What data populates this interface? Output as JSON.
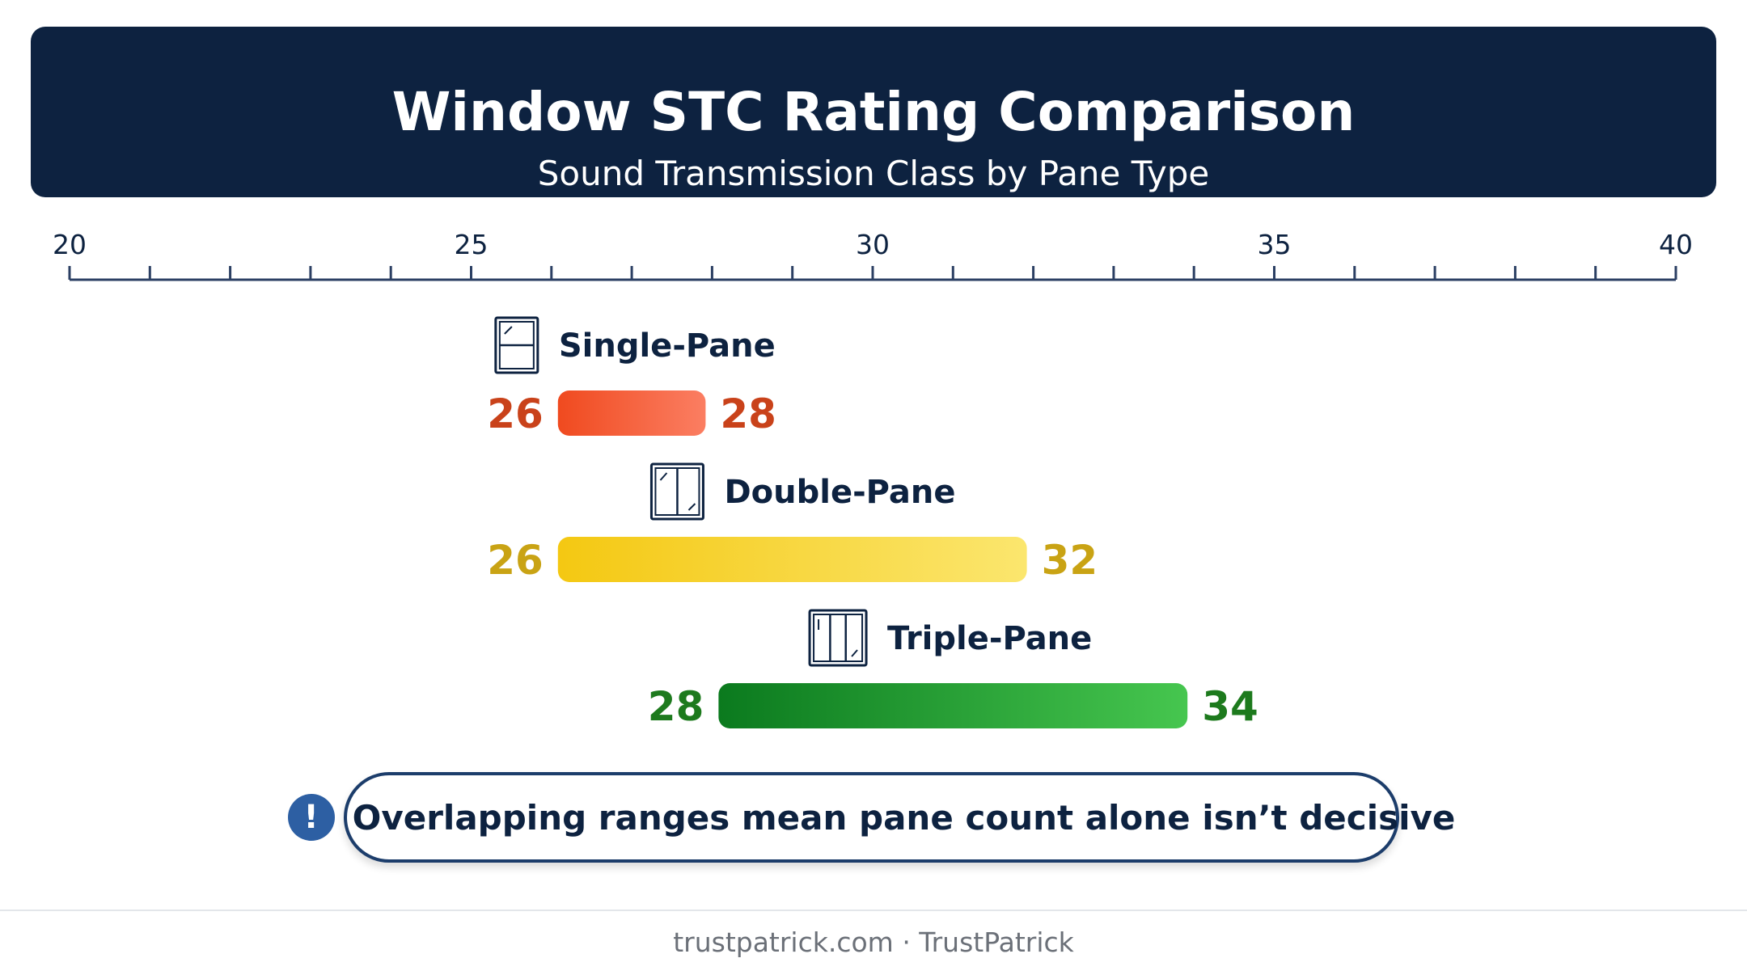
{
  "header": {
    "title": "Window STC Rating Comparison",
    "subtitle": "Sound Transmission Class by Pane Type"
  },
  "chart_data": {
    "type": "bar",
    "orientation": "horizontal-range",
    "title": "Window STC Rating Comparison",
    "subtitle": "Sound Transmission Class by Pane Type",
    "xlim": [
      20,
      40
    ],
    "major_ticks": [
      20,
      25,
      30,
      35,
      40
    ],
    "minor_tick_step": 1,
    "axis_position": "top",
    "grid": false,
    "series": [
      {
        "name": "Single-Pane",
        "low": 26,
        "high": 28,
        "icon": "single-pane-window-icon",
        "color_start": "#f04a1f",
        "color_end": "#fb7e62",
        "label_color": "#c9421a"
      },
      {
        "name": "Double-Pane",
        "low": 26,
        "high": 32,
        "icon": "double-pane-window-icon",
        "color_start": "#f4c812",
        "color_end": "#fbe66e",
        "label_color": "#c9a314"
      },
      {
        "name": "Triple-Pane",
        "low": 28,
        "high": 34,
        "icon": "triple-pane-window-icon",
        "color_start": "#0b7a1e",
        "color_end": "#46c64f",
        "label_color": "#1d7a1d"
      }
    ]
  },
  "callout": {
    "icon": "exclamation-icon",
    "icon_glyph": "!",
    "text": "Overlapping ranges mean pane count alone isn’t decisive"
  },
  "footer": {
    "text": "trustpatrick.com · TrustPatrick"
  }
}
